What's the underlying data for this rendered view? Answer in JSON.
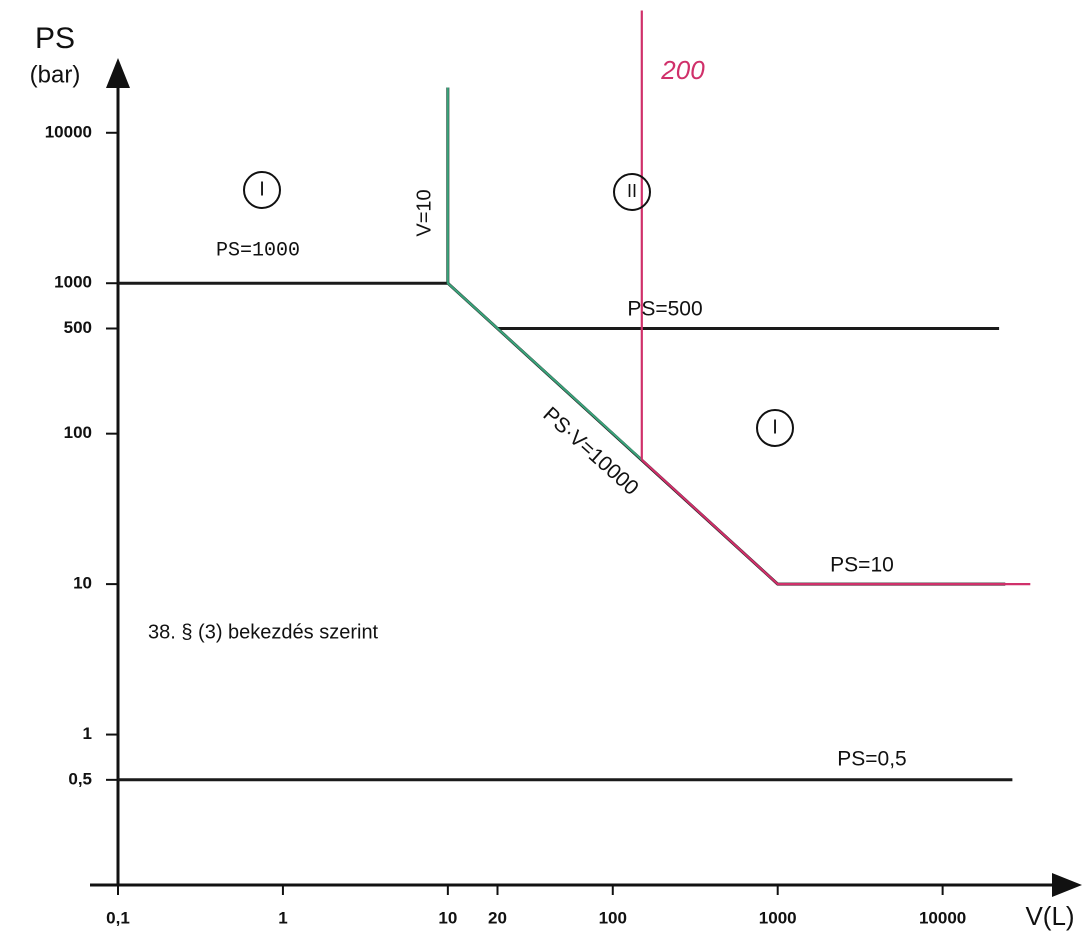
{
  "chart_data": {
    "type": "line",
    "log_x": true,
    "log_y": true,
    "grid": false,
    "ylabel": [
      "PS",
      "(bar)"
    ],
    "xlabel": "V(L)",
    "xlim": [
      0.1,
      70000
    ],
    "ylim": [
      0.1,
      30000
    ],
    "xticks": [
      {
        "value": 0.1,
        "label": "0,1"
      },
      1,
      10,
      20,
      100,
      1000,
      10000
    ],
    "yticks": [
      {
        "value": 0.5,
        "label": "0,5"
      },
      1,
      10,
      100,
      500,
      1000,
      10000
    ],
    "series": [
      {
        "color": "#1a1a1a",
        "x": [
          0.1,
          10,
          1000,
          24000
        ],
        "values": [
          1000,
          1000,
          10,
          10
        ]
      },
      {
        "color": "#1a1a1a",
        "x": [
          10,
          10
        ],
        "values": [
          1000,
          20000
        ]
      },
      {
        "color": "#1a1a1a",
        "x": [
          20,
          22000
        ],
        "values": [
          500,
          500
        ]
      },
      {
        "color": "#1a1a1a",
        "x": [
          0.1,
          26500
        ],
        "values": [
          0.5,
          0.5
        ]
      },
      {
        "color": "#3aa27a",
        "x": [
          10,
          10,
          150
        ],
        "values": [
          20000,
          1000,
          67
        ]
      },
      {
        "color": "#d0306a",
        "x": [
          150,
          1000,
          34000
        ],
        "values": [
          67,
          10,
          10
        ]
      },
      {
        "color": "#d0306a",
        "x": [
          150,
          150
        ],
        "values": [
          67,
          65000
        ]
      }
    ],
    "annotations": [
      "I",
      "II",
      "I",
      "PS=1000",
      "V=10",
      "PS=500",
      "PS·V=10000",
      "PS=10",
      "PS=0,5",
      "38. § (3) bekezdés szerint",
      "200"
    ]
  }
}
